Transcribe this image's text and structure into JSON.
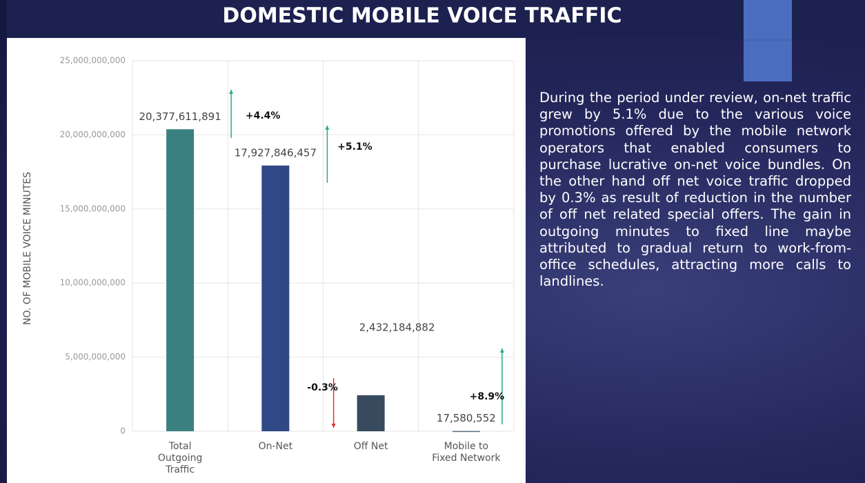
{
  "chart_data": {
    "type": "bar",
    "title": "DOMESTIC MOBILE VOICE TRAFFIC",
    "ylabel": "NO. OF MOBILE VOICE MINUTES",
    "categories": [
      "Total Outgoing Traffic",
      "On-Net",
      "Off Net",
      "Mobile to Fixed Network"
    ],
    "values": [
      20377611891,
      17927846457,
      2432184882,
      17580552
    ],
    "value_labels": [
      "20,377,611,891",
      "17,927,846,457",
      "2,432,184,882",
      "17,580,552"
    ],
    "colors": [
      "#3b8080",
      "#2f4886",
      "#384a5e",
      "#5b6b7c"
    ],
    "change_labels": [
      "+4.4%",
      "+5.1%",
      "-0.3%",
      "+8.9%"
    ],
    "ylim": [
      0,
      25000000000
    ],
    "yticks": [
      0,
      {
        "value": 5000000000,
        "label": "5,000,000,000"
      },
      {
        "value": 10000000000,
        "label": "10,000,000,000"
      },
      {
        "value": 15000000000,
        "label": "15,000,000,000"
      },
      {
        "value": 20000000000,
        "label": "20,000,000,000"
      },
      {
        "value": 25000000000,
        "label": "25,000,000,000"
      }
    ],
    "grid": true
  },
  "body_text": "During the period under review, on-net traffic grew by 5.1% due to the various voice promotions offered by the mobile network operators that enabled consumers to purchase lucrative on-net voice bundles. On the other hand off net voice traffic dropped by 0.3% as result of reduction in the number of off net related special offers. The gain in outgoing minutes to fixed line maybe attributed to gradual return to work-from-office schedules, attracting more calls to landlines."
}
